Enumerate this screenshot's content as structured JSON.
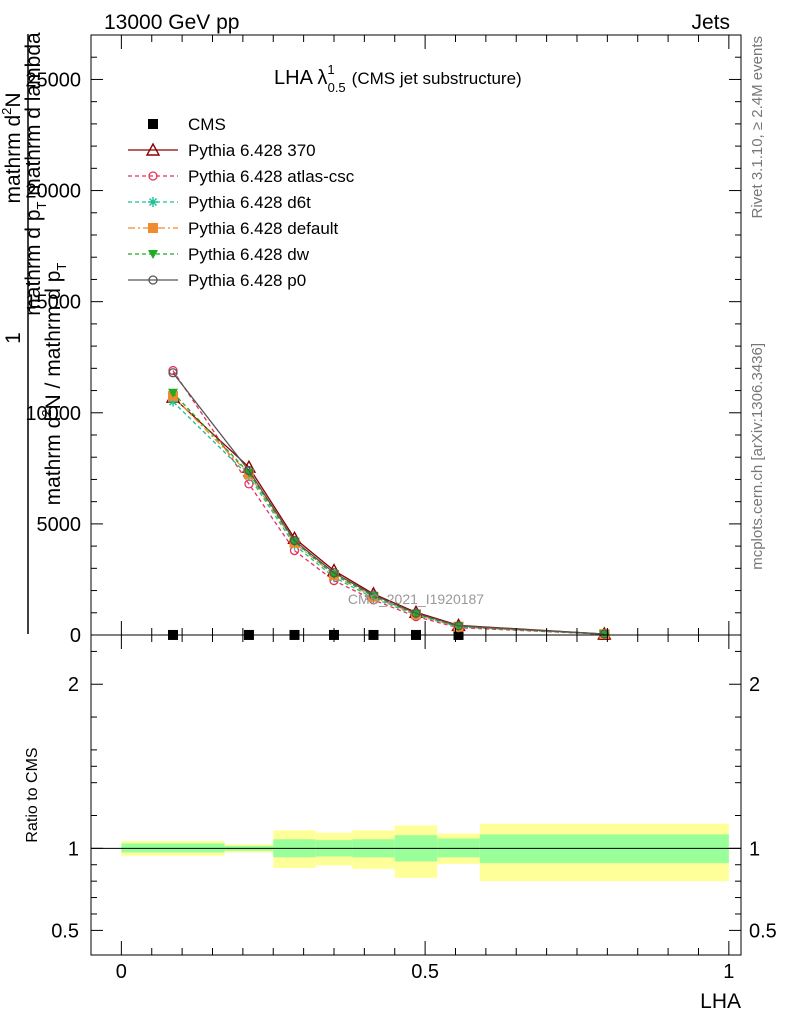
{
  "header": {
    "energy": "13000 GeV pp",
    "process": "Jets"
  },
  "side": {
    "rivet": "Rivet 3.1.10, ≥ 2.4M events",
    "site": "mcplots.cern.ch [arXiv:1306.3436]"
  },
  "watermark": "CMS_2021_I1920187",
  "chart_data": [
    {
      "type": "line",
      "title_main": "LHA λ",
      "title_sup": "1",
      "title_sub": "0.5",
      "title_tail": "(CMS jet substructure)",
      "xlabel": "LHA",
      "ylabel_num": "1",
      "ylabel_line1": "mathrm d",
      "ylabel_line1_sup": "2",
      "ylabel_line1_tail": "N",
      "ylabel_line2_a": "mathrm d p",
      "ylabel_line2_sub": "T",
      "ylabel_line2_b": " mathrm d lambda",
      "ylabel_den_a": "mathrm d",
      "ylabel_den_b": "N / mathrm d p",
      "ylabel_den_sub": "T",
      "xlim": [
        -0.05,
        1.02
      ],
      "ylim": [
        0,
        27000
      ],
      "yticks": [
        0,
        5000,
        10000,
        15000,
        20000,
        25000
      ],
      "ytick_labels": [
        "0",
        "5000",
        "10000",
        "15000",
        "20000",
        "25000"
      ],
      "x": [
        0.085,
        0.21,
        0.285,
        0.35,
        0.415,
        0.485,
        0.555,
        0.795
      ],
      "series": [
        {
          "name": "CMS",
          "color": "#000000",
          "marker": "square",
          "dash": "none",
          "values": [
            2,
            2,
            2,
            2,
            2,
            2,
            2,
            2
          ]
        },
        {
          "name": "Pythia 6.428 370",
          "color": "#8b0000",
          "marker": "triangle-up-open",
          "dash": "solid",
          "values": [
            10700,
            7550,
            4350,
            2900,
            1850,
            1020,
            430,
            45
          ]
        },
        {
          "name": "Pythia 6.428 atlas-csc",
          "color": "#e8305b",
          "marker": "circle-open",
          "dash": "dashed",
          "values": [
            11900,
            6800,
            3800,
            2450,
            1580,
            830,
            330,
            35
          ]
        },
        {
          "name": "Pythia 6.428 d6t",
          "color": "#1dc093",
          "marker": "asterisk",
          "dash": "dashed",
          "values": [
            10500,
            7150,
            4050,
            2600,
            1660,
            900,
            360,
            38
          ]
        },
        {
          "name": "Pythia 6.428 default",
          "color": "#f08c30",
          "marker": "square",
          "dash": "dashdot",
          "values": [
            10750,
            7250,
            4150,
            2700,
            1720,
            930,
            375,
            40
          ]
        },
        {
          "name": "Pythia 6.428 dw",
          "color": "#22aa22",
          "marker": "triangle-down",
          "dash": "dashed",
          "values": [
            10900,
            7300,
            4200,
            2720,
            1750,
            950,
            390,
            42
          ]
        },
        {
          "name": "Pythia 6.428 p0",
          "color": "#555555",
          "marker": "circle-open",
          "dash": "solid",
          "values": [
            11800,
            7400,
            4250,
            2800,
            1800,
            980,
            410,
            44
          ]
        }
      ]
    },
    {
      "type": "area",
      "ylabel": "Ratio to CMS",
      "xlabel": "LHA",
      "xlim": [
        -0.05,
        1.02
      ],
      "ylim": [
        0.35,
        2.3
      ],
      "yticks": [
        0.5,
        1,
        2
      ],
      "ytick_labels": [
        "0.5",
        "1",
        "2"
      ],
      "xticks": [
        0,
        0.5,
        1
      ],
      "xtick_labels": [
        "0",
        "0.5",
        "1"
      ],
      "reference": 1,
      "bands": {
        "inner_color": "#99ff99",
        "outer_color": "#ffff99",
        "bins": [
          {
            "lo": 0.0,
            "hi": 0.17,
            "inner": [
              0.975,
              1.03
            ],
            "outer": [
              0.955,
              1.045
            ]
          },
          {
            "lo": 0.17,
            "hi": 0.25,
            "inner": [
              0.985,
              1.015
            ],
            "outer": [
              0.975,
              1.025
            ]
          },
          {
            "lo": 0.25,
            "hi": 0.32,
            "inner": [
              0.945,
              1.055
            ],
            "outer": [
              0.88,
              1.11
            ]
          },
          {
            "lo": 0.32,
            "hi": 0.38,
            "inner": [
              0.95,
              1.05
            ],
            "outer": [
              0.895,
              1.095
            ]
          },
          {
            "lo": 0.38,
            "hi": 0.45,
            "inner": [
              0.945,
              1.055
            ],
            "outer": [
              0.875,
              1.11
            ]
          },
          {
            "lo": 0.45,
            "hi": 0.52,
            "inner": [
              0.92,
              1.08
            ],
            "outer": [
              0.82,
              1.14
            ]
          },
          {
            "lo": 0.52,
            "hi": 0.59,
            "inner": [
              0.945,
              1.06
            ],
            "outer": [
              0.905,
              1.09
            ]
          },
          {
            "lo": 0.59,
            "hi": 1.0,
            "inner": [
              0.91,
              1.085
            ],
            "outer": [
              0.8,
              1.15
            ]
          }
        ]
      }
    }
  ]
}
